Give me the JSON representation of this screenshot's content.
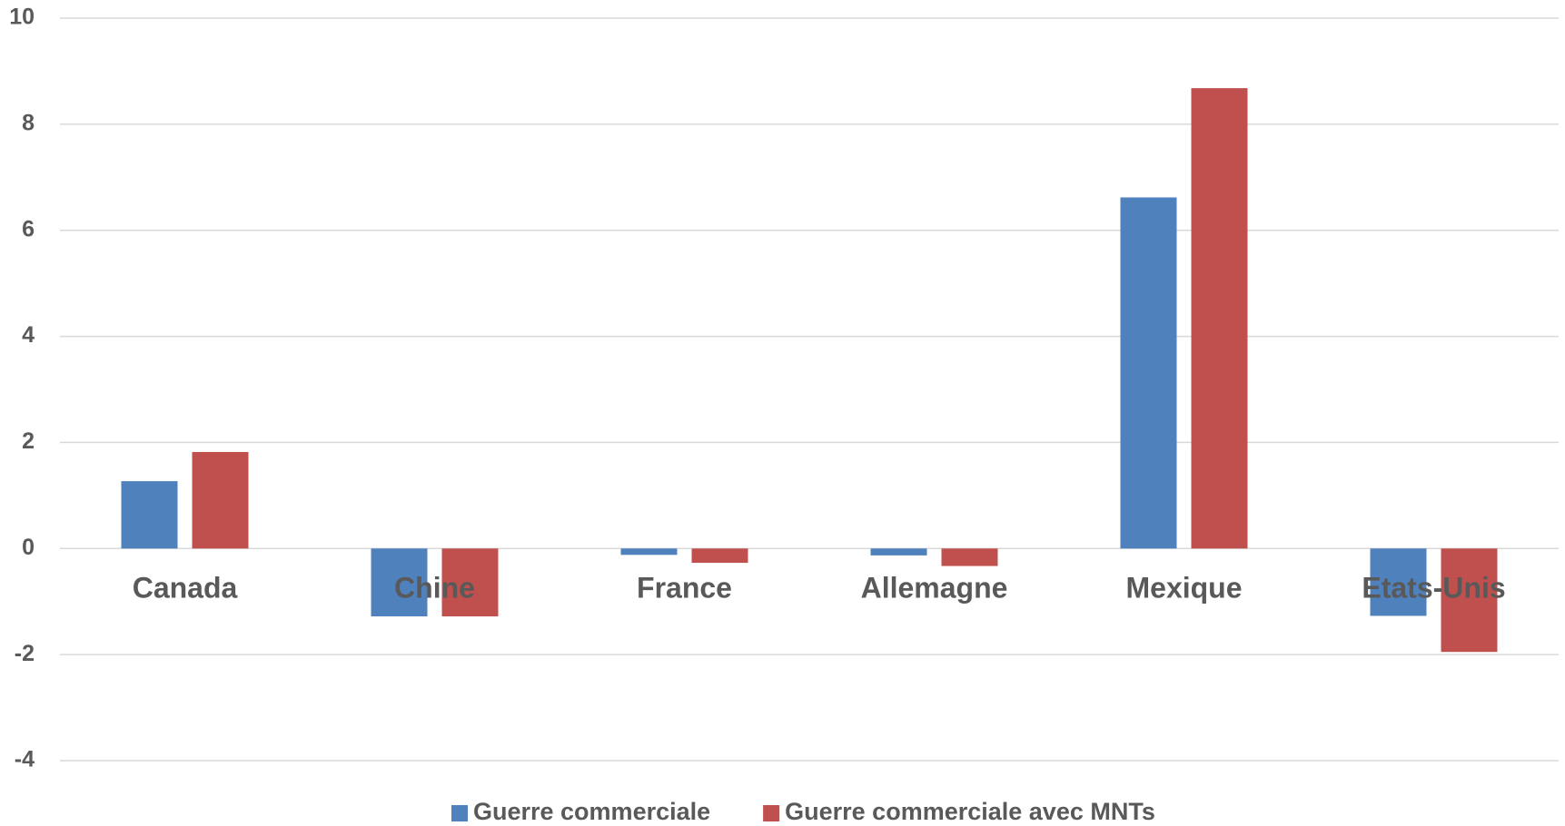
{
  "chart_data": {
    "type": "bar",
    "categories": [
      "Canada",
      "Chine",
      "France",
      "Allemagne",
      "Mexique",
      "Etats-Unis"
    ],
    "series": [
      {
        "name": "Guerre commerciale",
        "color": "#4f81bd",
        "values": [
          1.27,
          -1.28,
          -0.12,
          -0.13,
          6.62,
          -1.27
        ]
      },
      {
        "name": "Guerre commerciale avec MNTs",
        "color": "#c0504d",
        "values": [
          1.82,
          -1.28,
          -0.27,
          -0.33,
          8.68,
          -1.95
        ]
      }
    ],
    "ylim": [
      -4,
      10
    ],
    "yticks": [
      -4,
      -2,
      0,
      2,
      4,
      6,
      8,
      10
    ],
    "grid": true,
    "legend": "bottom"
  }
}
